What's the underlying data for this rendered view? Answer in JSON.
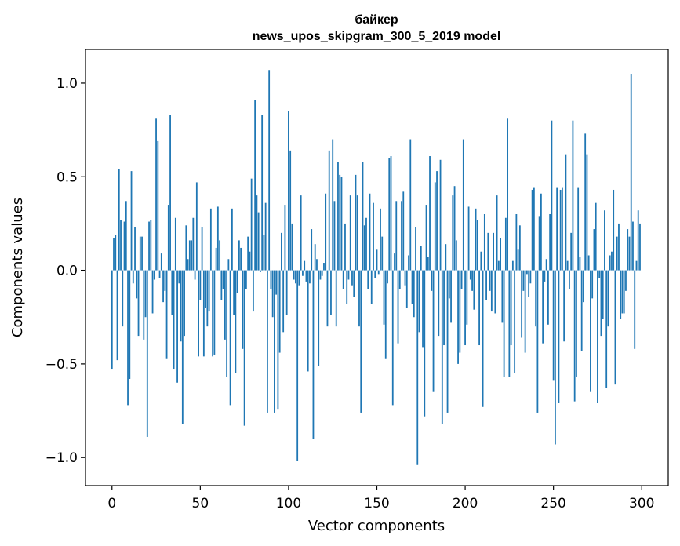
{
  "chart_data": {
    "type": "bar",
    "title": "байкер",
    "subtitle": "news_upos_skipgram_300_5_2019 model",
    "xlabel": "Vector components",
    "ylabel": "Components values",
    "xlim": [
      -15,
      315
    ],
    "ylim": [
      -1.15,
      1.18
    ],
    "xticks": [
      0,
      50,
      100,
      150,
      200,
      250,
      300
    ],
    "xtick_labels": [
      "0",
      "50",
      "100",
      "150",
      "200",
      "250",
      "300"
    ],
    "yticks": [
      -1.0,
      -0.5,
      0.0,
      0.5,
      1.0
    ],
    "ytick_labels": [
      "−1.0",
      "−0.5",
      "0.0",
      "0.5",
      "1.0"
    ],
    "bar_color": "#1f77b4",
    "x": [
      0,
      1,
      2,
      3,
      4,
      5,
      6,
      7,
      8,
      9,
      10,
      11,
      12,
      13,
      14,
      15,
      16,
      17,
      18,
      19,
      20,
      21,
      22,
      23,
      24,
      25,
      26,
      27,
      28,
      29,
      30,
      31,
      32,
      33,
      34,
      35,
      36,
      37,
      38,
      39,
      40,
      41,
      42,
      43,
      44,
      45,
      46,
      47,
      48,
      49,
      50,
      51,
      52,
      53,
      54,
      55,
      56,
      57,
      58,
      59,
      60,
      61,
      62,
      63,
      64,
      65,
      66,
      67,
      68,
      69,
      70,
      71,
      72,
      73,
      74,
      75,
      76,
      77,
      78,
      79,
      80,
      81,
      82,
      83,
      84,
      85,
      86,
      87,
      88,
      89,
      90,
      91,
      92,
      93,
      94,
      95,
      96,
      97,
      98,
      99,
      100,
      101,
      102,
      103,
      104,
      105,
      106,
      107,
      108,
      109,
      110,
      111,
      112,
      113,
      114,
      115,
      116,
      117,
      118,
      119,
      120,
      121,
      122,
      123,
      124,
      125,
      126,
      127,
      128,
      129,
      130,
      131,
      132,
      133,
      134,
      135,
      136,
      137,
      138,
      139,
      140,
      141,
      142,
      143,
      144,
      145,
      146,
      147,
      148,
      149,
      150,
      151,
      152,
      153,
      154,
      155,
      156,
      157,
      158,
      159,
      160,
      161,
      162,
      163,
      164,
      165,
      166,
      167,
      168,
      169,
      170,
      171,
      172,
      173,
      174,
      175,
      176,
      177,
      178,
      179,
      180,
      181,
      182,
      183,
      184,
      185,
      186,
      187,
      188,
      189,
      190,
      191,
      192,
      193,
      194,
      195,
      196,
      197,
      198,
      199,
      200,
      201,
      202,
      203,
      204,
      205,
      206,
      207,
      208,
      209,
      210,
      211,
      212,
      213,
      214,
      215,
      216,
      217,
      218,
      219,
      220,
      221,
      222,
      223,
      224,
      225,
      226,
      227,
      228,
      229,
      230,
      231,
      232,
      233,
      234,
      235,
      236,
      237,
      238,
      239,
      240,
      241,
      242,
      243,
      244,
      245,
      246,
      247,
      248,
      249,
      250,
      251,
      252,
      253,
      254,
      255,
      256,
      257,
      258,
      259,
      260,
      261,
      262,
      263,
      264,
      265,
      266,
      267,
      268,
      269,
      270,
      271,
      272,
      273,
      274,
      275,
      276,
      277,
      278,
      279,
      280,
      281,
      282,
      283,
      284,
      285,
      286,
      287,
      288,
      289,
      290,
      291,
      292,
      293,
      294,
      295,
      296,
      297,
      298,
      299
    ],
    "values": [
      -0.53,
      0.17,
      0.19,
      -0.48,
      0.54,
      0.27,
      -0.3,
      0.26,
      0.37,
      -0.72,
      -0.58,
      0.53,
      -0.07,
      0.23,
      -0.15,
      -0.35,
      0.18,
      0.18,
      -0.37,
      -0.25,
      -0.89,
      0.26,
      0.27,
      -0.23,
      -0.05,
      0.81,
      0.69,
      -0.04,
      0.09,
      -0.17,
      -0.11,
      -0.47,
      0.35,
      0.83,
      -0.24,
      -0.53,
      0.28,
      -0.6,
      -0.07,
      -0.38,
      -0.82,
      -0.35,
      0.24,
      0.06,
      0.16,
      0.16,
      0.28,
      -0.05,
      0.47,
      -0.46,
      -0.16,
      0.23,
      -0.46,
      -0.2,
      -0.3,
      -0.22,
      0.33,
      -0.46,
      -0.45,
      0.12,
      0.34,
      0.16,
      -0.16,
      -0.1,
      -0.37,
      -0.57,
      0.06,
      -0.72,
      0.33,
      -0.24,
      -0.55,
      -0.12,
      0.16,
      0.12,
      -0.42,
      -0.83,
      -0.1,
      0.18,
      0.1,
      0.49,
      -0.22,
      0.91,
      0.4,
      0.31,
      -0.01,
      0.83,
      0.19,
      0.36,
      -0.76,
      1.07,
      -0.1,
      -0.25,
      -0.76,
      -0.13,
      -0.74,
      -0.44,
      0.2,
      -0.33,
      0.35,
      -0.24,
      0.85,
      0.64,
      0.25,
      -0.05,
      -0.07,
      -1.02,
      -0.08,
      0.4,
      -0.03,
      0.05,
      -0.06,
      -0.54,
      -0.07,
      0.22,
      -0.9,
      0.14,
      0.06,
      -0.51,
      -0.05,
      -0.03,
      0.04,
      0.41,
      -0.3,
      0.64,
      -0.24,
      0.7,
      0.37,
      -0.3,
      0.58,
      0.51,
      0.5,
      -0.1,
      0.25,
      -0.18,
      -0.05,
      0.4,
      -0.08,
      -0.14,
      0.51,
      0.4,
      -0.3,
      -0.76,
      0.58,
      0.24,
      0.28,
      -0.1,
      0.41,
      -0.18,
      0.36,
      -0.04,
      0.11,
      -0.02,
      0.33,
      0.18,
      -0.29,
      -0.47,
      -0.07,
      0.6,
      0.61,
      -0.72,
      0.09,
      0.37,
      -0.39,
      -0.1,
      0.37,
      0.42,
      -0.08,
      -0.2,
      0.08,
      0.7,
      -0.18,
      -0.25,
      0.23,
      -1.04,
      -0.33,
      0.13,
      -0.41,
      -0.78,
      0.35,
      0.07,
      0.61,
      -0.11,
      -0.65,
      0.47,
      0.53,
      -0.35,
      0.59,
      -0.82,
      -0.4,
      0.14,
      -0.76,
      -0.15,
      -0.28,
      0.4,
      0.45,
      0.16,
      -0.5,
      -0.44,
      -0.1,
      0.7,
      -0.4,
      -0.29,
      0.34,
      -0.05,
      -0.11,
      -0.21,
      0.33,
      0.27,
      -0.4,
      0.1,
      -0.73,
      0.3,
      -0.16,
      0.2,
      -0.11,
      -0.22,
      0.2,
      -0.23,
      0.4,
      0.05,
      0.17,
      -0.28,
      -0.57,
      0.28,
      0.81,
      -0.57,
      -0.4,
      0.05,
      -0.55,
      0.3,
      0.11,
      0.24,
      -0.36,
      -0.11,
      -0.44,
      -0.02,
      -0.14,
      -0.07,
      0.43,
      0.44,
      -0.3,
      -0.76,
      0.29,
      0.41,
      -0.39,
      -0.06,
      0.06,
      -0.29,
      0.3,
      0.8,
      -0.59,
      -0.93,
      0.44,
      -0.71,
      0.43,
      0.44,
      -0.38,
      0.62,
      0.05,
      -0.1,
      0.2,
      0.8,
      -0.7,
      -0.57,
      0.44,
      0.07,
      -0.43,
      -0.17,
      0.73,
      0.62,
      0.08,
      -0.65,
      -0.15,
      0.22,
      0.36,
      -0.71,
      -0.04,
      -0.35,
      -0.26,
      0.32,
      -0.63,
      -0.3,
      0.08,
      0.1,
      0.43,
      -0.61,
      0.18,
      0.25,
      -0.26,
      -0.23,
      -0.23,
      -0.11,
      0.22,
      0.18,
      1.05,
      0.26,
      -0.42,
      0.05,
      0.32,
      0.25
    ],
    "bar_width": 0.8
  }
}
